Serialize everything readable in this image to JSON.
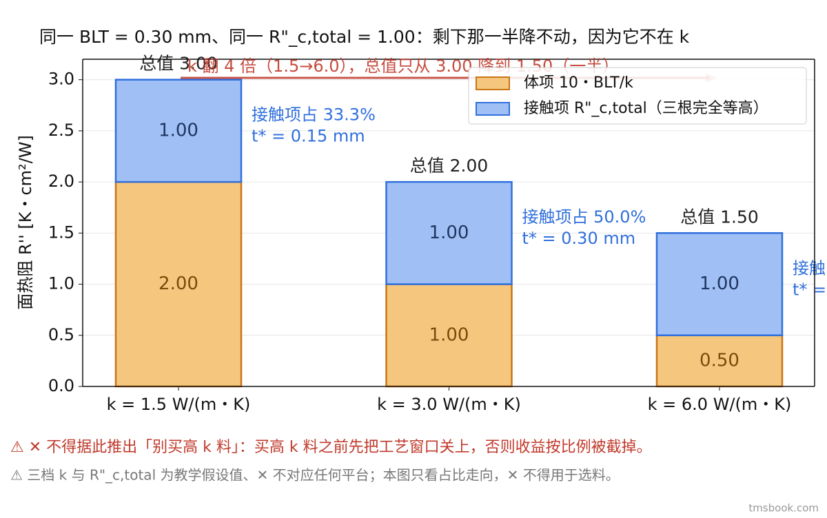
{
  "chart_data": {
    "type": "stacked_bar",
    "title": "同一 BLT = 0.30 mm、同一 R\"_c,total = 1.00：剩下那一半降不动，因为它不在 k",
    "y_label": "面热阻 R'' [K・cm²/W]",
    "categories": [
      "k = 1.5 W/(m・K)",
      "k = 3.0 W/(m・K)",
      "k = 6.0 W/(m・K)"
    ],
    "series": [
      {
        "name": "体项 10・BLT/k",
        "color": "#f5c77e",
        "edge_color": "#c87515",
        "label_color": "#7a4a0c",
        "values": [
          2.0,
          1.0,
          0.5
        ],
        "value_labels": [
          "2.00",
          "1.00",
          "0.50"
        ]
      },
      {
        "name": "接触项 R\"_c,total（三根完全等高）",
        "color": "#a0c0f5",
        "edge_color": "#2f6fdc",
        "label_color": "#1f3560",
        "values": [
          1.0,
          1.0,
          1.0
        ],
        "value_labels": [
          "1.00",
          "1.00",
          "1.00"
        ]
      }
    ],
    "ylim": [
      0,
      3.2
    ],
    "yticks": [
      {
        "value": 0,
        "label": "0.0"
      },
      {
        "value": 0.5,
        "label": "0.5"
      },
      {
        "value": 1,
        "label": "1.0"
      },
      {
        "value": 1.5,
        "label": "1.5"
      },
      {
        "value": 2,
        "label": "2.0"
      },
      {
        "value": 2.5,
        "label": "2.5"
      },
      {
        "value": 3,
        "label": "3.0"
      }
    ],
    "grid": true,
    "legend": "upper right",
    "total_labels": [
      "总值 3.00",
      "总值 2.00",
      "总值 1.50"
    ],
    "contact_notes": [
      [
        "接触项占 33.3%",
        "t* = 0.15 mm"
      ],
      [
        "接触项占 50.0%",
        "t* = 0.30 mm"
      ],
      [
        "接触",
        "t* ="
      ]
    ],
    "arrow_note": "k 翻 4 倍（1.5→6.0），总值只从 3.00 降到 1.50（一半）"
  },
  "notes": [
    "⚠ ✕ 不得据此推出「别买高 k 料」：买高 k 料之前先把工艺窗口关上，否则收益按比例被截掉。",
    "⚠ 三档 k 与 R\"_c,total 为教学假设值、✕ 不对应任何平台；本图只看占比走向，✕ 不得用于选料。"
  ],
  "watermark": "tmsbook.com"
}
